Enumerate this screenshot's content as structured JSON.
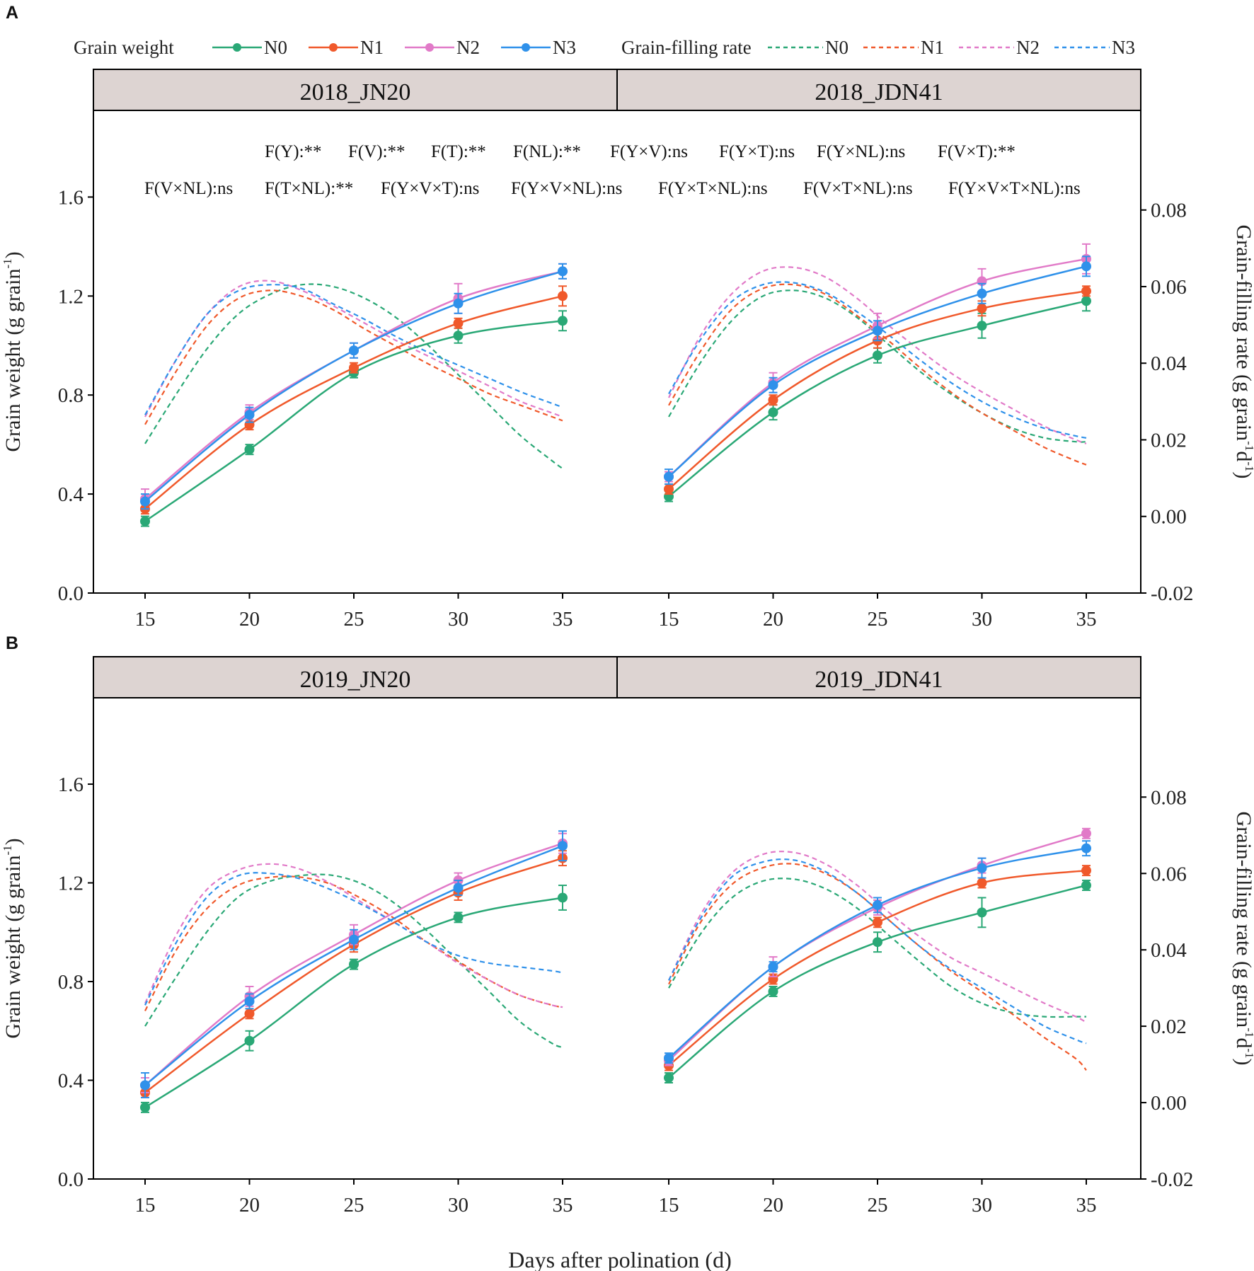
{
  "figure": {
    "x_axis_label": "Days after polination (d)",
    "colors": {
      "N0": "#2aa876",
      "N1": "#f0592b",
      "N2": "#e17ac8",
      "N3": "#2f91ea",
      "strip_fill": "#ddd4d2",
      "frame": "#000000"
    }
  },
  "legend": {
    "weight_title": "Grain weight",
    "rate_title": "Grain-filling rate",
    "entries": [
      "N0",
      "N1",
      "N2",
      "N3"
    ]
  },
  "annotations": {
    "row1": [
      "F(Y):**",
      "F(V):**",
      "F(T):**",
      "F(NL):**",
      "F(Y×V):ns",
      "F(Y×T):ns",
      "F(Y×NL):ns",
      "F(V×T):**"
    ],
    "row2": [
      "F(V×NL):ns",
      "F(T×NL):**",
      "F(Y×V×T):ns",
      "F(Y×V×NL):ns",
      "F(Y×T×NL):ns",
      "F(V×T×NL):ns",
      "F(Y×V×T×NL):ns"
    ]
  },
  "chart_data": [
    {
      "panel": "A",
      "type": "line",
      "y_left": {
        "label": "Grain weight (g grain-1)",
        "label_main": "Grain weight (g grain",
        "label_sup": "-1",
        "label_end": ")",
        "ylim": [
          0,
          1.95
        ],
        "ticks": [
          "0.0",
          "0.4",
          "0.8",
          "1.2",
          "1.6"
        ]
      },
      "y_right": {
        "label": "Grain-filling rate (g grain-1 d-1)",
        "label_main": "Grain-filling rate (g grain",
        "label_sup1": "-1",
        "label_mid": "d",
        "label_sup2": "-1",
        "label_end": ")",
        "ylim": [
          -0.02,
          0.106
        ],
        "ticks": [
          "-0.02",
          "0.00",
          "0.02",
          "0.04",
          "0.06",
          "0.08"
        ]
      },
      "x_ticks": [
        "15",
        "20",
        "25",
        "30",
        "35"
      ],
      "facets": [
        {
          "title": "2018_JN20",
          "x": [
            15,
            20,
            25,
            30,
            35
          ],
          "weight": {
            "N0": {
              "values": [
                0.29,
                0.58,
                0.89,
                1.04,
                1.1
              ],
              "err": [
                0.02,
                0.02,
                0.02,
                0.03,
                0.04
              ]
            },
            "N1": {
              "values": [
                0.34,
                0.68,
                0.91,
                1.09,
                1.2
              ],
              "err": [
                0.02,
                0.02,
                0.02,
                0.02,
                0.04
              ]
            },
            "N2": {
              "values": [
                0.38,
                0.73,
                0.98,
                1.19,
                1.3
              ],
              "err": [
                0.04,
                0.03,
                0.03,
                0.06,
                0.03
              ]
            },
            "N3": {
              "values": [
                0.37,
                0.72,
                0.98,
                1.17,
                1.3
              ],
              "err": [
                0.03,
                0.03,
                0.03,
                0.04,
                0.03
              ]
            }
          },
          "rate": {
            "x": [
              15,
              16.5,
              18,
              19.5,
              21,
              22.5,
              24,
              25.5,
              27,
              28.5,
              30,
              31.5,
              33,
              34.5,
              35
            ],
            "N0": [
              0.019,
              0.032,
              0.044,
              0.053,
              0.058,
              0.0605,
              0.06,
              0.057,
              0.052,
              0.045,
              0.037,
              0.029,
              0.021,
              0.0145,
              0.0125
            ],
            "N1": [
              0.024,
              0.038,
              0.05,
              0.057,
              0.059,
              0.0575,
              0.054,
              0.049,
              0.0445,
              0.04,
              0.036,
              0.032,
              0.029,
              0.026,
              0.025
            ],
            "N2": [
              0.026,
              0.041,
              0.053,
              0.06,
              0.0615,
              0.059,
              0.055,
              0.0505,
              0.046,
              0.042,
              0.038,
              0.034,
              0.03,
              0.027,
              0.026
            ],
            "N3": [
              0.0265,
              0.041,
              0.053,
              0.059,
              0.0605,
              0.0595,
              0.0555,
              0.0515,
              0.047,
              0.043,
              0.0395,
              0.036,
              0.0325,
              0.0295,
              0.0285
            ]
          }
        },
        {
          "title": "2018_JDN41",
          "x": [
            15,
            20,
            25,
            30,
            35
          ],
          "weight": {
            "N0": {
              "values": [
                0.39,
                0.73,
                0.96,
                1.08,
                1.18
              ],
              "err": [
                0.02,
                0.03,
                0.03,
                0.05,
                0.04
              ]
            },
            "N1": {
              "values": [
                0.42,
                0.78,
                1.02,
                1.15,
                1.22
              ],
              "err": [
                0.02,
                0.02,
                0.03,
                0.03,
                0.02
              ]
            },
            "N2": {
              "values": [
                0.47,
                0.85,
                1.08,
                1.26,
                1.35
              ],
              "err": [
                0.02,
                0.04,
                0.05,
                0.05,
                0.06
              ]
            },
            "N3": {
              "values": [
                0.47,
                0.84,
                1.06,
                1.21,
                1.32
              ],
              "err": [
                0.03,
                0.03,
                0.04,
                0.04,
                0.04
              ]
            }
          },
          "rate": {
            "x": [
              15,
              16.5,
              18,
              19.5,
              21,
              22.5,
              24,
              25.5,
              27,
              28.5,
              30,
              31.5,
              33,
              34.5,
              35
            ],
            "N0": [
              0.026,
              0.04,
              0.051,
              0.0575,
              0.059,
              0.057,
              0.052,
              0.045,
              0.038,
              0.032,
              0.027,
              0.023,
              0.0205,
              0.0195,
              0.0195
            ],
            "N1": [
              0.029,
              0.043,
              0.054,
              0.0595,
              0.0605,
              0.058,
              0.0525,
              0.046,
              0.039,
              0.0325,
              0.027,
              0.0225,
              0.018,
              0.0145,
              0.0135
            ],
            "N2": [
              0.031,
              0.047,
              0.058,
              0.064,
              0.065,
              0.0625,
              0.057,
              0.05,
              0.0435,
              0.0375,
              0.0325,
              0.028,
              0.0235,
              0.02,
              0.019
            ],
            "N3": [
              0.032,
              0.046,
              0.056,
              0.0605,
              0.061,
              0.0585,
              0.0535,
              0.0475,
              0.041,
              0.035,
              0.03,
              0.026,
              0.023,
              0.021,
              0.0205
            ]
          }
        }
      ]
    },
    {
      "panel": "B",
      "type": "line",
      "y_left": {
        "label": "Grain weight (g grain-1)",
        "label_main": "Grain weight (g grain",
        "label_sup": "-1",
        "label_end": ")",
        "ylim": [
          0,
          1.95
        ],
        "ticks": [
          "0.0",
          "0.4",
          "0.8",
          "1.2",
          "1.6"
        ]
      },
      "y_right": {
        "label": "Grain-filling rate (g grain-1 d-1)",
        "label_main": "Grain-filling rate (g grain",
        "label_sup1": "-1",
        "label_mid": "d",
        "label_sup2": "-1",
        "label_end": ")",
        "ylim": [
          -0.02,
          0.106
        ],
        "ticks": [
          "-0.02",
          "0.00",
          "0.02",
          "0.04",
          "0.06",
          "0.08"
        ]
      },
      "x_ticks": [
        "15",
        "20",
        "25",
        "30",
        "35"
      ],
      "facets": [
        {
          "title": "2019_JN20",
          "x": [
            15,
            20,
            25,
            30,
            35
          ],
          "weight": {
            "N0": {
              "values": [
                0.29,
                0.56,
                0.87,
                1.06,
                1.14
              ],
              "err": [
                0.02,
                0.04,
                0.02,
                0.02,
                0.05
              ]
            },
            "N1": {
              "values": [
                0.35,
                0.67,
                0.95,
                1.16,
                1.3
              ],
              "err": [
                0.02,
                0.02,
                0.03,
                0.03,
                0.03
              ]
            },
            "N2": {
              "values": [
                0.38,
                0.74,
                0.99,
                1.21,
                1.36
              ],
              "err": [
                0.03,
                0.04,
                0.04,
                0.03,
                0.04
              ]
            },
            "N3": {
              "values": [
                0.38,
                0.72,
                0.97,
                1.18,
                1.35
              ],
              "err": [
                0.05,
                0.03,
                0.04,
                0.03,
                0.06
              ]
            }
          },
          "rate": {
            "x": [
              15,
              16.5,
              18,
              19.5,
              21,
              22.5,
              24,
              25.5,
              27,
              28.5,
              30,
              31.5,
              33,
              34.5,
              35
            ],
            "N0": [
              0.02,
              0.033,
              0.045,
              0.054,
              0.058,
              0.0595,
              0.0595,
              0.057,
              0.052,
              0.045,
              0.037,
              0.029,
              0.021,
              0.0155,
              0.0145
            ],
            "N1": [
              0.024,
              0.04,
              0.051,
              0.057,
              0.059,
              0.059,
              0.057,
              0.053,
              0.048,
              0.042,
              0.037,
              0.032,
              0.028,
              0.0255,
              0.025
            ],
            "N2": [
              0.026,
              0.044,
              0.056,
              0.061,
              0.0625,
              0.061,
              0.057,
              0.052,
              0.047,
              0.042,
              0.0365,
              0.032,
              0.028,
              0.0255,
              0.025
            ],
            "N3": [
              0.0255,
              0.042,
              0.054,
              0.0595,
              0.06,
              0.0585,
              0.0555,
              0.0515,
              0.047,
              0.042,
              0.0385,
              0.0365,
              0.0355,
              0.0345,
              0.034
            ]
          }
        },
        {
          "title": "2019_JDN41",
          "x": [
            15,
            20,
            25,
            30,
            35
          ],
          "weight": {
            "N0": {
              "values": [
                0.41,
                0.76,
                0.96,
                1.08,
                1.19
              ],
              "err": [
                0.02,
                0.02,
                0.04,
                0.06,
                0.02
              ]
            },
            "N1": {
              "values": [
                0.46,
                0.81,
                1.04,
                1.2,
                1.25
              ],
              "err": [
                0.02,
                0.02,
                0.02,
                0.02,
                0.02
              ]
            },
            "N2": {
              "values": [
                0.48,
                0.86,
                1.1,
                1.27,
                1.4
              ],
              "err": [
                0.02,
                0.04,
                0.03,
                0.03,
                0.02
              ]
            },
            "N3": {
              "values": [
                0.49,
                0.86,
                1.11,
                1.26,
                1.34
              ],
              "err": [
                0.02,
                0.02,
                0.03,
                0.04,
                0.03
              ]
            }
          },
          "rate": {
            "x": [
              15,
              16.5,
              18,
              19.5,
              21,
              22.5,
              24,
              25.5,
              27,
              28.5,
              30,
              31.5,
              33,
              34.5,
              35
            ],
            "N0": [
              0.03,
              0.044,
              0.0535,
              0.058,
              0.0585,
              0.056,
              0.051,
              0.044,
              0.037,
              0.0305,
              0.026,
              0.0235,
              0.0225,
              0.0225,
              0.0225
            ],
            "N1": [
              0.031,
              0.047,
              0.057,
              0.0615,
              0.0625,
              0.06,
              0.055,
              0.048,
              0.041,
              0.0345,
              0.029,
              0.023,
              0.017,
              0.0115,
              0.0085
            ],
            "N2": [
              0.032,
              0.049,
              0.06,
              0.065,
              0.0655,
              0.0625,
              0.057,
              0.05,
              0.0435,
              0.038,
              0.034,
              0.03,
              0.026,
              0.0225,
              0.021
            ],
            "N3": [
              0.032,
              0.048,
              0.059,
              0.063,
              0.0635,
              0.0605,
              0.055,
              0.048,
              0.041,
              0.035,
              0.03,
              0.025,
              0.02,
              0.0165,
              0.0155
            ]
          }
        }
      ]
    }
  ]
}
